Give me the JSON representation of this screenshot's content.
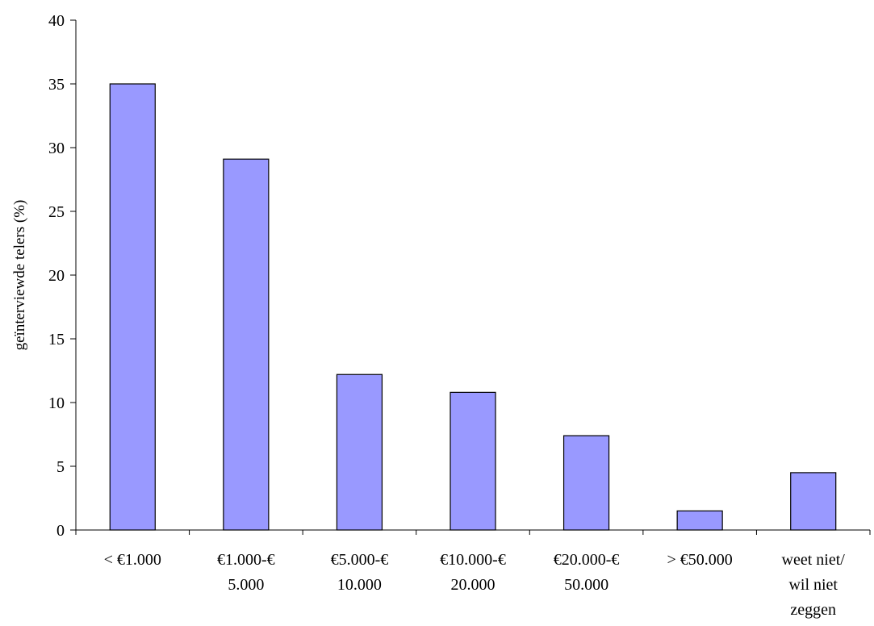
{
  "chart_data": {
    "type": "bar",
    "title": "",
    "xlabel": "",
    "ylabel": "geïnterviewde telers (%)",
    "ylim": [
      0,
      40
    ],
    "yticks": [
      "0",
      "5",
      "10",
      "15",
      "20",
      "25",
      "30",
      "35",
      "40"
    ],
    "categories": [
      [
        "< €1.000"
      ],
      [
        "€1.000-€",
        "5.000"
      ],
      [
        "€5.000-€",
        "10.000"
      ],
      [
        "€10.000-€",
        "20.000"
      ],
      [
        "€20.000-€",
        "50.000"
      ],
      [
        "> €50.000"
      ],
      [
        "weet niet/",
        "wil niet",
        "zeggen"
      ]
    ],
    "values": [
      35.0,
      29.1,
      12.2,
      10.8,
      7.4,
      1.5,
      4.5
    ],
    "bar_color": "#9999ff",
    "grid": false,
    "legend": "none"
  }
}
